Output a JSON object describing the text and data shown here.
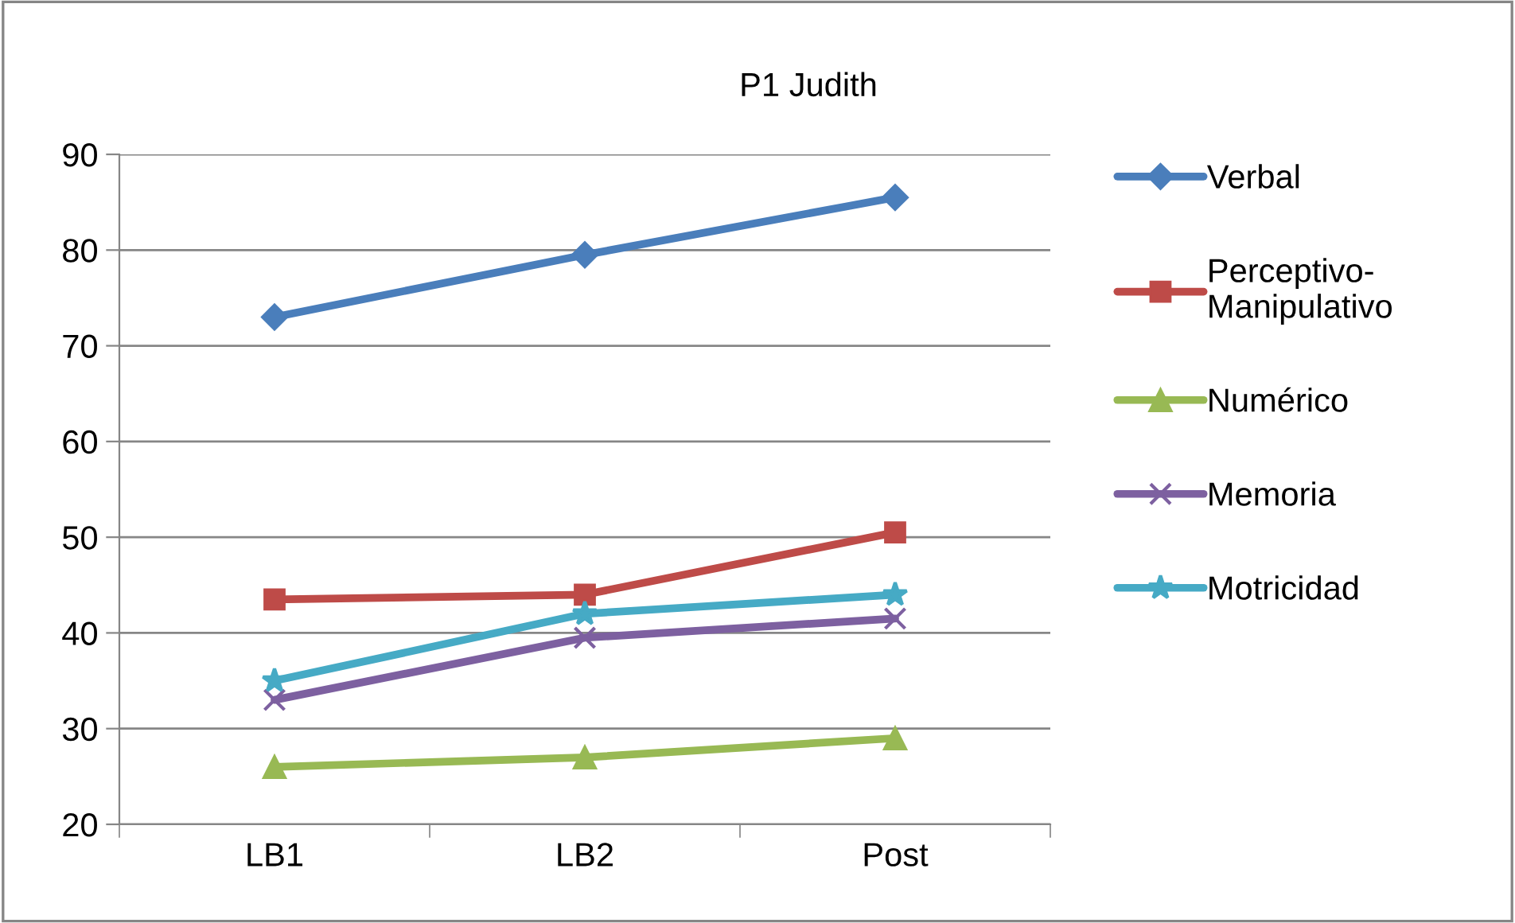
{
  "chart_data": {
    "type": "line",
    "title": "P1 Judith",
    "categories": [
      "LB1",
      "LB2",
      "Post"
    ],
    "series": [
      {
        "name": "Verbal",
        "color": "#4a7ebb",
        "marker": "diamond",
        "values": [
          73,
          79.5,
          85.5
        ]
      },
      {
        "name": "Perceptivo-\nManipulativo",
        "color": "#be4b48",
        "marker": "square",
        "values": [
          43.5,
          44,
          50.5
        ]
      },
      {
        "name": "Numérico",
        "color": "#98b954",
        "marker": "triangle",
        "values": [
          26,
          27,
          29
        ]
      },
      {
        "name": "Memoria",
        "color": "#7d60a0",
        "marker": "cross",
        "values": [
          33,
          39.5,
          41.5
        ]
      },
      {
        "name": "Motricidad",
        "color": "#46aac5",
        "marker": "star",
        "values": [
          35,
          42,
          44
        ]
      }
    ],
    "ylim": [
      20,
      90
    ],
    "yticks": [
      20,
      30,
      40,
      50,
      60,
      70,
      80,
      90
    ],
    "grid": "y",
    "legend": "right",
    "line_style": "solid"
  }
}
